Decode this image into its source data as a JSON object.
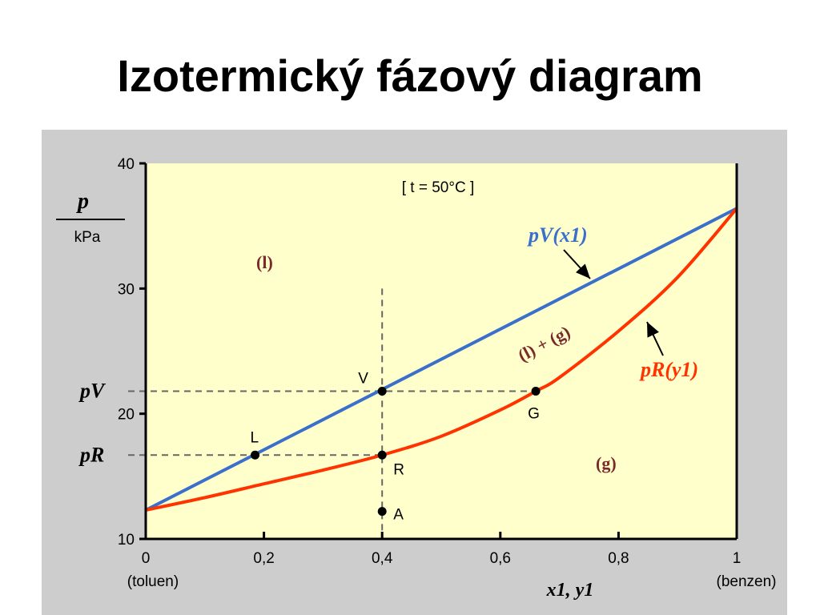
{
  "slide": {
    "title": "Izotermický fázový diagram"
  },
  "colors": {
    "plot_bg": "#ffffcc",
    "panel_bg": "#cdcdcd",
    "blue": "#3a6fcc",
    "red": "#ff3300",
    "region": "#7a2a2a"
  },
  "chart_data": {
    "type": "line",
    "title": "[ t = 50°C ]",
    "xlabel": "x1, y1",
    "ylabel": "p / kPa",
    "ylabel_num": "p",
    "ylabel_den": "kPa",
    "xlim": [
      0,
      1
    ],
    "ylim": [
      10,
      40
    ],
    "x_ticks": [
      {
        "v": 0,
        "label": "0"
      },
      {
        "v": 0.2,
        "label": "0,2"
      },
      {
        "v": 0.4,
        "label": "0,4"
      },
      {
        "v": 0.6,
        "label": "0,6"
      },
      {
        "v": 0.8,
        "label": "0,8"
      },
      {
        "v": 1,
        "label": "1"
      }
    ],
    "y_ticks": [
      {
        "v": 10,
        "label": "10"
      },
      {
        "v": 20,
        "label": "20"
      },
      {
        "v": 30,
        "label": "30"
      },
      {
        "v": 40,
        "label": "40"
      }
    ],
    "x_end_labels": {
      "left": "(toluen)",
      "right": "(benzen)"
    },
    "y_markers": [
      {
        "name": "pV",
        "label": "pV",
        "value": 21.8
      },
      {
        "name": "pR",
        "label": "pR",
        "value": 16.7
      }
    ],
    "series": [
      {
        "name": "pV(x1)",
        "label": "pV(x1)",
        "color": "#3a6fcc",
        "x": [
          0,
          1
        ],
        "y": [
          12.3,
          36.4
        ]
      },
      {
        "name": "pR(y1)",
        "label": "pR(y1)",
        "color": "#ff3300",
        "x": [
          0,
          0.1,
          0.2,
          0.3,
          0.4,
          0.5,
          0.6,
          0.66,
          0.7,
          0.8,
          0.9,
          1.0
        ],
        "y": [
          12.3,
          13.3,
          14.4,
          15.5,
          16.7,
          18.2,
          20.3,
          21.8,
          22.9,
          26.6,
          30.9,
          36.4
        ]
      }
    ],
    "points": [
      {
        "name": "V",
        "x": 0.4,
        "y": 21.8
      },
      {
        "name": "L",
        "x": 0.185,
        "y": 16.7
      },
      {
        "name": "R",
        "x": 0.4,
        "y": 16.7
      },
      {
        "name": "G",
        "x": 0.66,
        "y": 21.8
      },
      {
        "name": "A",
        "x": 0.4,
        "y": 12.2
      }
    ],
    "regions": [
      {
        "name": "(l)",
        "x": 0.1,
        "y": 29
      },
      {
        "name": "(l) + (g)",
        "x": 0.5,
        "y": 24.5
      },
      {
        "name": "(g)",
        "x": 0.78,
        "y": 15.5
      }
    ]
  }
}
